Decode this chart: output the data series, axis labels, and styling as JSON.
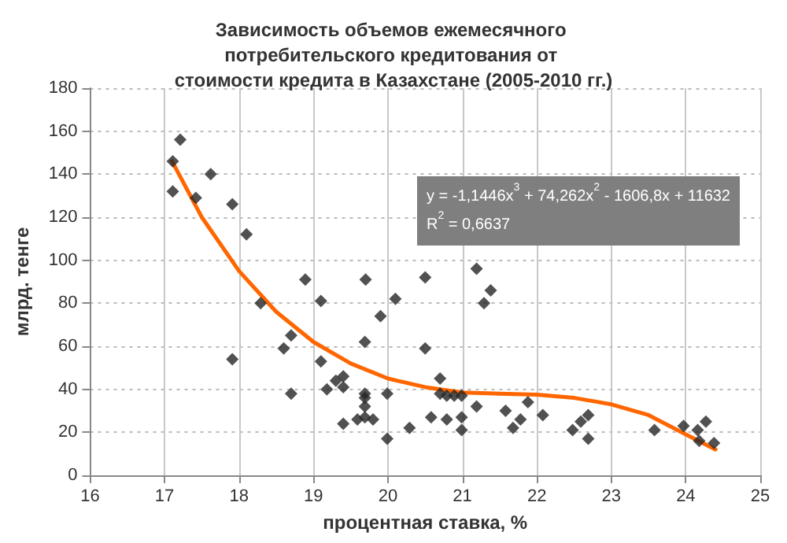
{
  "chart_data": {
    "type": "scatter",
    "title": "Зависимость объемов ежемесячного потребительского кредитования от стоимости кредита в Казахстане (2005-2010 гг.)",
    "xlabel": "процентная ставка, %",
    "ylabel": "млрд. тенге",
    "xlim": [
      16,
      25
    ],
    "xticks": [
      16,
      17,
      18,
      19,
      20,
      21,
      22,
      23,
      24,
      25
    ],
    "ylim": [
      0,
      180
    ],
    "yticks": [
      0,
      20,
      40,
      60,
      80,
      100,
      120,
      140,
      160,
      180
    ],
    "grid": true,
    "marker": "diamond",
    "annotations": [
      "y = -1,1446x$^{3}$ + 74,262x$^{2}$ - 1606,8x + 11632",
      "R$^{2}$ = 0,6637"
    ],
    "series": [
      {
        "type": "scatter",
        "color": "#262626",
        "x": [
          17.21,
          17.11,
          17.11,
          17.62,
          17.42,
          17.91,
          18.1,
          18.89,
          19.1,
          18.29,
          18.7,
          18.6,
          17.91,
          19.1,
          18.7,
          19.18,
          19.7,
          20.5,
          21.19,
          21.38,
          21.29,
          20.1,
          19.9,
          19.69,
          20.5,
          20.7,
          19.4,
          19.3,
          19.4,
          19.69,
          19.69,
          19.69,
          19.99,
          20.7,
          20.79,
          20.89,
          20.99,
          19.59,
          19.8,
          19.69,
          19.4,
          20.29,
          20.58,
          20.79,
          20.99,
          20.99,
          19.99,
          21.19,
          21.58,
          21.78,
          21.68,
          21.88,
          22.08,
          22.48,
          22.59,
          22.69,
          22.69,
          23.58,
          23.97,
          24.16,
          24.27,
          24.18,
          24.38
        ],
        "values": [
          156,
          146,
          132,
          140,
          129,
          126,
          112,
          91,
          81,
          80,
          65,
          59,
          54,
          53,
          38,
          40,
          91,
          92,
          96,
          86,
          80,
          82,
          74,
          62,
          59,
          45,
          46,
          44,
          41,
          38,
          36,
          32,
          38,
          38,
          37,
          37,
          37,
          26,
          26,
          27,
          24,
          22,
          27,
          26,
          27,
          21,
          17,
          32,
          30,
          26,
          22,
          34,
          28,
          21,
          25,
          28,
          17,
          21,
          23,
          21,
          25,
          16,
          15
        ]
      },
      {
        "type": "line",
        "color": "#ff6600",
        "marker": "none",
        "x": [
          17.1,
          17.5,
          18,
          18.5,
          19,
          19.5,
          20,
          20.5,
          21,
          21.5,
          22,
          22.5,
          23,
          23.5,
          24,
          24.4
        ],
        "values": [
          146,
          120,
          95,
          76,
          62,
          52,
          45,
          41,
          38.5,
          38,
          37.5,
          36,
          33,
          28,
          19,
          12
        ]
      }
    ]
  }
}
